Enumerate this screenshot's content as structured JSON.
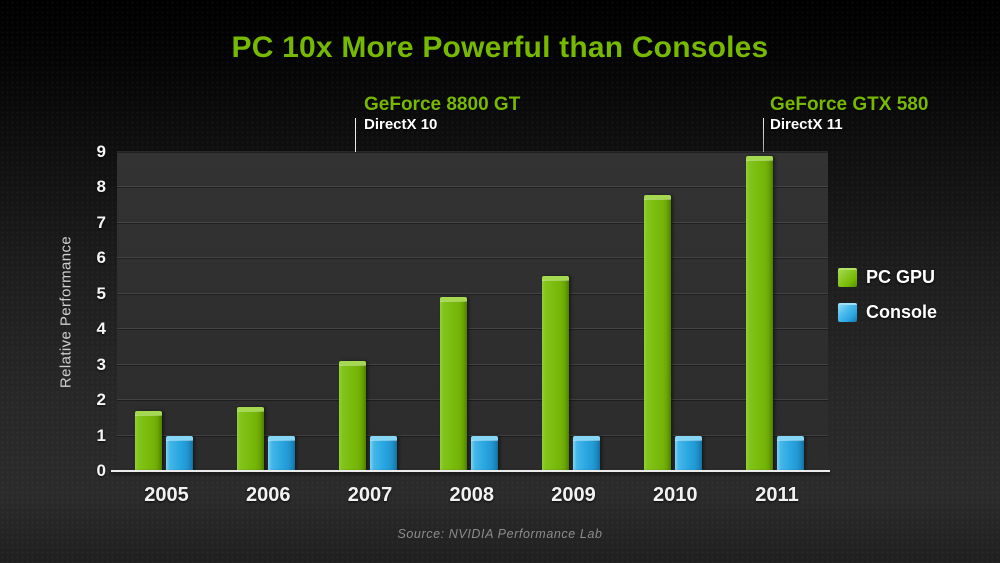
{
  "chart_data": {
    "type": "bar",
    "title": "PC 10x More Powerful than Consoles",
    "categories": [
      "2005",
      "2006",
      "2007",
      "2008",
      "2009",
      "2010",
      "2011"
    ],
    "series": [
      {
        "name": "PC GPU",
        "color": "#76b900",
        "values": [
          1.7,
          1.8,
          3.1,
          4.9,
          5.5,
          7.8,
          8.9
        ]
      },
      {
        "name": "Console",
        "color": "#29abe2",
        "values": [
          1.0,
          1.0,
          1.0,
          1.0,
          1.0,
          1.0,
          1.0
        ]
      }
    ],
    "xlabel": "",
    "ylabel": "Relative Performance",
    "ylim": [
      0,
      9
    ],
    "yticks": [
      0,
      1,
      2,
      3,
      4,
      5,
      6,
      7,
      8,
      9
    ],
    "grid": true,
    "legend_position": "right",
    "annotations": [
      {
        "title": "GeForce 8800 GT",
        "subtitle": "DirectX 10",
        "category": "2007",
        "series": "PC GPU",
        "value": 3.1
      },
      {
        "title": "GeForce GTX 580",
        "subtitle": "DirectX 11",
        "category": "2011",
        "series": "PC GPU",
        "value": 8.9
      }
    ],
    "source": "Source:  NVIDIA Performance Lab"
  }
}
